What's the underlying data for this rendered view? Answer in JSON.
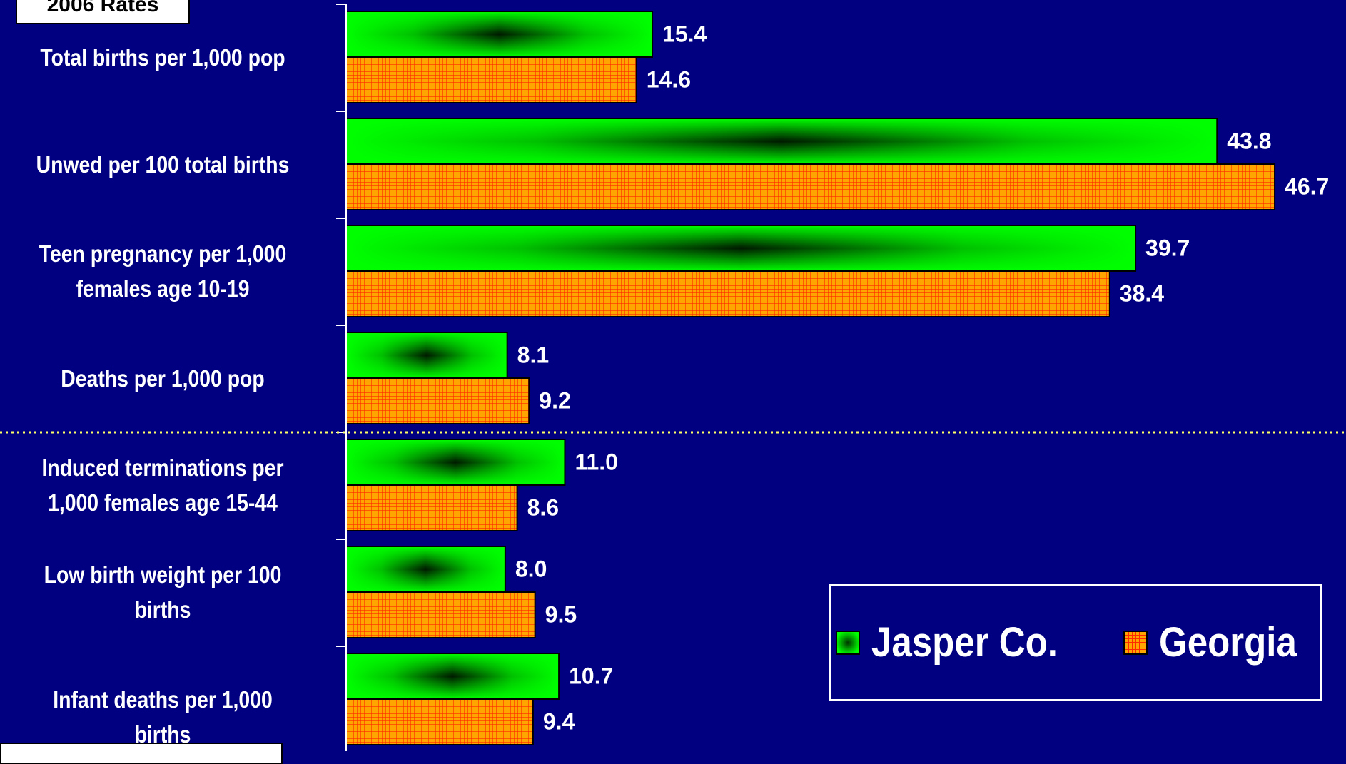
{
  "rates_title": "2006 Rates",
  "colors": {
    "background": "#000080",
    "jasper": "#00ff00",
    "georgia": "#ffa500",
    "divider": "#ffff66"
  },
  "chart_data": {
    "type": "bar",
    "orientation": "horizontal",
    "title": "2006 Rates",
    "xlabel": "",
    "ylabel": "",
    "xlim": [
      0,
      47
    ],
    "categories": [
      "Total births per 1,000 pop",
      "Unwed per 100 total births",
      "Teen pregnancy per 1,000\nfemales age 10-19",
      "Deaths per 1,000 pop",
      "Induced terminations per\n1,000 females age 15-44",
      "Low birth weight per 100\nbirths",
      "Infant deaths per 1,000 births"
    ],
    "series": [
      {
        "name": "Jasper Co.",
        "values": [
          15.4,
          43.8,
          39.7,
          8.1,
          11.0,
          8.0,
          10.7
        ],
        "labels": [
          "15.4",
          "43.8",
          "39.7",
          "8.1",
          "11.0",
          "8.0",
          "10.7"
        ]
      },
      {
        "name": "Georgia",
        "values": [
          14.6,
          46.7,
          38.4,
          9.2,
          8.6,
          9.5,
          9.4
        ],
        "labels": [
          "14.6",
          "46.7",
          "38.4",
          "9.2",
          "8.6",
          "9.5",
          "9.4"
        ]
      }
    ],
    "grid": false,
    "legend": "bottom-right",
    "divider_after_category": 3
  }
}
